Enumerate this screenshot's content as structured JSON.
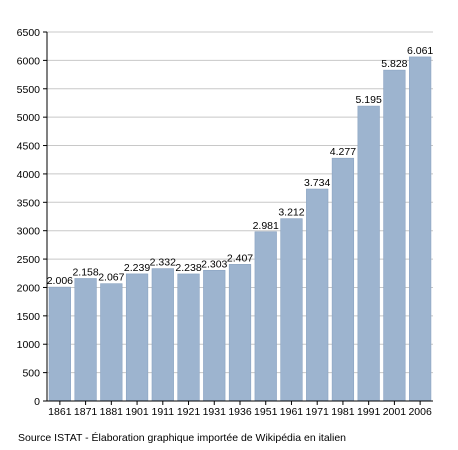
{
  "chart_data": {
    "type": "bar",
    "categories": [
      "1861",
      "1871",
      "1881",
      "1901",
      "1911",
      "1921",
      "1931",
      "1936",
      "1951",
      "1961",
      "1971",
      "1981",
      "1991",
      "2001",
      "2006"
    ],
    "values": [
      2006,
      2158,
      2067,
      2239,
      2332,
      2238,
      2303,
      2407,
      2981,
      3212,
      3734,
      4277,
      5195,
      5828,
      6061
    ],
    "data_labels": [
      "2.006",
      "2.158",
      "2.067",
      "2.239",
      "2.332",
      "2.238",
      "2.303",
      "2.407",
      "2.981",
      "3.212",
      "3.734",
      "4.277",
      "5.195",
      "5.828",
      "6.061"
    ],
    "ylim": [
      0,
      6500
    ],
    "yticks": [
      0,
      500,
      1000,
      1500,
      2000,
      2500,
      3000,
      3500,
      4000,
      4500,
      5000,
      5500,
      6000,
      6500
    ],
    "grid": true,
    "colors": {
      "bar": "#9db4cf",
      "bar_edge": "#8aa3c1",
      "grid": "#c8c8c8",
      "axis": "#000000"
    }
  },
  "source_note": "Source ISTAT - Élaboration graphique importée de Wikipédia en italien"
}
